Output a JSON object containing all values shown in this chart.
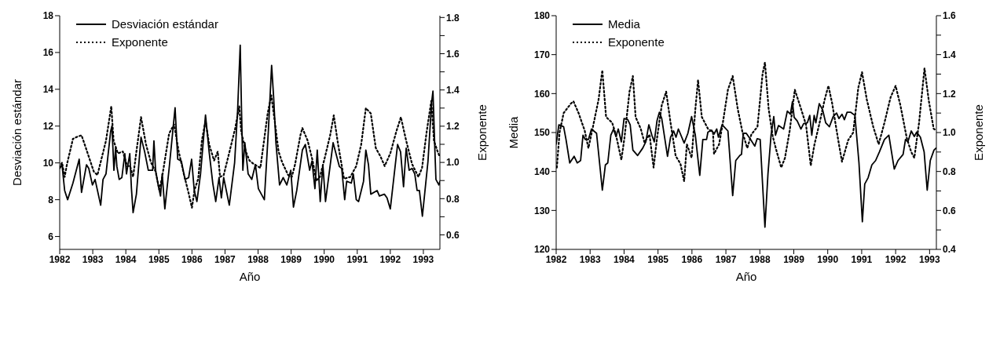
{
  "chart_data": [
    {
      "type": "line",
      "xlabel": "Año",
      "ylabel": "Desviación estándar",
      "y2label": "Exponente",
      "legend": "top left",
      "grid": false,
      "xlim": [
        1982,
        1993.5
      ],
      "xticks": [
        1982,
        1983,
        1984,
        1985,
        1986,
        1987,
        1988,
        1989,
        1990,
        1991,
        1992,
        1993
      ],
      "ylim": [
        5.3,
        18
      ],
      "yticks": [
        6,
        8,
        10,
        12,
        14,
        16,
        18
      ],
      "y2lim": [
        0.52,
        1.81
      ],
      "y2ticks": [
        0.6,
        {
          "value": 0.7,
          "label": null
        },
        0.8,
        {
          "value": 0.9,
          "label": null
        },
        {
          "value": 1.0,
          "label": "1.0"
        },
        {
          "value": 1.1,
          "label": null
        },
        1.2,
        {
          "value": 1.3,
          "label": null
        },
        1.4,
        {
          "value": 1.5,
          "label": null
        },
        1.6,
        {
          "value": 1.7,
          "label": null
        },
        1.8
      ],
      "series": [
        {
          "name": "Desviación estándar",
          "color": "#000000",
          "line_style": "solid",
          "x": [
            1982.0,
            1982.07,
            1982.15,
            1982.24,
            1982.4,
            1982.59,
            1982.66,
            1982.81,
            1982.88,
            1982.99,
            1983.07,
            1983.24,
            1983.31,
            1983.4,
            1983.54,
            1983.58,
            1983.64,
            1983.69,
            1983.73,
            1983.8,
            1983.88,
            1983.97,
            1984.02,
            1984.12,
            1984.17,
            1984.22,
            1984.32,
            1984.46,
            1984.57,
            1984.68,
            1984.81,
            1984.85,
            1984.9,
            1984.98,
            1985.05,
            1985.1,
            1985.18,
            1985.31,
            1985.49,
            1985.57,
            1985.68,
            1985.79,
            1985.9,
            1985.99,
            1986.07,
            1986.15,
            1986.26,
            1986.41,
            1986.52,
            1986.63,
            1986.72,
            1986.82,
            1986.89,
            1986.96,
            1987.13,
            1987.29,
            1987.38,
            1987.46,
            1987.5,
            1987.54,
            1987.6,
            1987.7,
            1987.81,
            1987.92,
            1988.01,
            1988.19,
            1988.31,
            1988.41,
            1988.47,
            1988.54,
            1988.65,
            1988.76,
            1988.87,
            1988.99,
            1989.07,
            1989.17,
            1989.34,
            1989.43,
            1989.56,
            1989.63,
            1989.72,
            1989.79,
            1989.88,
            1989.96,
            1990.04,
            1990.27,
            1990.46,
            1990.53,
            1990.62,
            1990.68,
            1990.82,
            1990.88,
            1990.97,
            1991.04,
            1991.19,
            1991.26,
            1991.34,
            1991.41,
            1991.6,
            1991.67,
            1991.82,
            1991.9,
            1992.0,
            1992.22,
            1992.31,
            1992.4,
            1992.48,
            1992.57,
            1992.66,
            1992.74,
            1992.81,
            1992.88,
            1992.97,
            1993.14,
            1993.25,
            1993.29,
            1993.35,
            1993.38,
            1993.47,
            1993.5
          ],
          "values": [
            9.7,
            9.9,
            8.5,
            8.0,
            8.9,
            10.2,
            8.4,
            9.9,
            9.7,
            8.8,
            9.1,
            7.7,
            9.1,
            9.4,
            11.7,
            12.0,
            9.6,
            10.8,
            9.8,
            9.1,
            9.2,
            10.5,
            9.4,
            10.5,
            8.6,
            7.3,
            8.3,
            11.4,
            10.6,
            9.6,
            9.6,
            11.2,
            9.6,
            8.8,
            8.2,
            9.4,
            7.5,
            9.7,
            13.0,
            10.2,
            10.1,
            9.1,
            9.2,
            10.2,
            8.5,
            7.9,
            9.4,
            12.6,
            10.6,
            8.9,
            7.9,
            9.2,
            8.1,
            9.2,
            7.7,
            10.0,
            12.8,
            16.4,
            12.8,
            9.6,
            11.1,
            9.4,
            9.1,
            9.9,
            8.6,
            8.0,
            11.7,
            15.3,
            13.6,
            11.1,
            8.8,
            9.2,
            8.8,
            9.6,
            7.6,
            8.5,
            10.7,
            11.0,
            9.6,
            10.1,
            8.6,
            10.7,
            7.9,
            9.9,
            7.9,
            11.1,
            9.8,
            9.7,
            8.0,
            9.0,
            8.9,
            9.4,
            8.0,
            7.9,
            9.0,
            10.7,
            9.9,
            8.3,
            8.5,
            8.2,
            8.3,
            8.1,
            7.5,
            11.0,
            10.6,
            8.7,
            10.8,
            9.6,
            9.7,
            9.4,
            8.5,
            8.5,
            7.1,
            10.1,
            13.3,
            13.9,
            10.6,
            9.1,
            8.8,
            9.0
          ]
        },
        {
          "name": "Exponente",
          "color": "#000000",
          "line_style": "dotted",
          "axis": "y2",
          "x": [
            1982.0,
            1982.07,
            1982.15,
            1982.22,
            1982.4,
            1982.51,
            1982.66,
            1982.81,
            1983.03,
            1983.14,
            1983.25,
            1983.4,
            1983.56,
            1983.63,
            1983.76,
            1983.91,
            1984.04,
            1984.13,
            1984.22,
            1984.32,
            1984.46,
            1984.61,
            1984.76,
            1984.9,
            1985.01,
            1985.09,
            1985.31,
            1985.46,
            1985.6,
            1985.75,
            1985.9,
            1986.0,
            1986.08,
            1986.19,
            1986.3,
            1986.41,
            1986.52,
            1986.67,
            1986.78,
            1986.85,
            1986.96,
            1987.15,
            1987.31,
            1987.43,
            1987.49,
            1987.63,
            1987.74,
            1987.88,
            1988.07,
            1988.18,
            1988.29,
            1988.4,
            1988.51,
            1988.62,
            1988.73,
            1988.91,
            1989.02,
            1989.12,
            1989.28,
            1989.34,
            1989.5,
            1989.65,
            1989.76,
            1989.87,
            1990.01,
            1990.18,
            1990.29,
            1990.42,
            1990.6,
            1990.79,
            1990.97,
            1991.12,
            1991.26,
            1991.41,
            1991.56,
            1991.71,
            1991.83,
            1992.0,
            1992.18,
            1992.32,
            1992.48,
            1992.66,
            1992.85,
            1992.96,
            1993.1,
            1993.24,
            1993.32,
            1993.43,
            1993.5
          ],
          "values": [
            0.97,
            1.0,
            0.92,
            0.99,
            1.13,
            1.14,
            1.15,
            1.07,
            0.95,
            0.93,
            1.01,
            1.12,
            1.31,
            1.12,
            1.05,
            1.06,
            0.98,
            0.98,
            0.92,
            1.06,
            1.25,
            1.1,
            1.0,
            0.95,
            0.85,
            0.91,
            1.16,
            1.21,
            1.06,
            0.94,
            0.83,
            0.75,
            0.85,
            0.91,
            1.12,
            1.23,
            1.1,
            1.01,
            1.06,
            0.92,
            0.93,
            1.07,
            1.19,
            1.31,
            1.17,
            1.06,
            1.01,
            0.99,
            0.97,
            1.12,
            1.27,
            1.37,
            1.22,
            1.06,
            1.0,
            0.93,
            0.92,
            0.99,
            1.15,
            1.19,
            1.12,
            1.01,
            0.9,
            0.92,
            1.02,
            1.15,
            1.26,
            1.1,
            0.91,
            0.92,
            0.98,
            1.1,
            1.3,
            1.27,
            1.08,
            1.03,
            0.98,
            1.05,
            1.17,
            1.25,
            1.12,
            0.99,
            0.92,
            0.97,
            1.17,
            1.34,
            1.12,
            1.06,
            1.03
          ]
        }
      ]
    },
    {
      "type": "line",
      "xlabel": "Año",
      "ylabel": "Media",
      "y2label": "Exponente",
      "legend": "top left",
      "grid": false,
      "xlim": [
        1982,
        1993.2
      ],
      "xticks": [
        1982,
        1983,
        1984,
        1985,
        1986,
        1987,
        1988,
        1989,
        1990,
        1991,
        1992,
        1993
      ],
      "ylim": [
        120,
        180
      ],
      "yticks": [
        120,
        130,
        140,
        150,
        160,
        170,
        180
      ],
      "y2lim": [
        0.4,
        1.6
      ],
      "y2ticks": [
        0.4,
        {
          "value": 0.5,
          "label": null
        },
        0.6,
        {
          "value": 0.7,
          "label": null
        },
        0.8,
        {
          "value": 0.9,
          "label": null
        },
        {
          "value": 1.0,
          "label": "1.0"
        },
        {
          "value": 1.1,
          "label": null
        },
        1.2,
        {
          "value": 1.3,
          "label": null
        },
        1.4,
        {
          "value": 1.5,
          "label": null
        },
        1.6
      ],
      "series": [
        {
          "name": "Media",
          "color": "#000000",
          "line_style": "solid",
          "x": [
            1982.0,
            1982.08,
            1982.22,
            1982.29,
            1982.4,
            1982.53,
            1982.62,
            1982.72,
            1982.79,
            1982.86,
            1982.95,
            1983.04,
            1983.19,
            1983.36,
            1983.45,
            1983.52,
            1983.61,
            1983.69,
            1983.76,
            1983.83,
            1983.92,
            1984.0,
            1984.11,
            1984.18,
            1984.26,
            1984.4,
            1984.55,
            1984.64,
            1984.73,
            1984.82,
            1984.89,
            1984.97,
            1985.04,
            1985.11,
            1985.28,
            1985.37,
            1985.46,
            1985.53,
            1985.6,
            1985.77,
            1985.88,
            1985.99,
            1986.1,
            1986.23,
            1986.32,
            1986.43,
            1986.47,
            1986.58,
            1986.65,
            1986.73,
            1986.78,
            1986.89,
            1987.06,
            1987.2,
            1987.29,
            1987.41,
            1987.46,
            1987.51,
            1987.6,
            1987.73,
            1987.85,
            1987.92,
            1988.01,
            1988.08,
            1988.15,
            1988.24,
            1988.33,
            1988.41,
            1988.46,
            1988.55,
            1988.7,
            1988.81,
            1988.9,
            1988.96,
            1989.01,
            1989.1,
            1989.21,
            1989.29,
            1989.4,
            1989.47,
            1989.53,
            1989.6,
            1989.65,
            1989.75,
            1989.85,
            1989.94,
            1990.05,
            1990.16,
            1990.26,
            1990.33,
            1990.42,
            1990.49,
            1990.57,
            1990.68,
            1990.8,
            1990.92,
            1991.02,
            1991.09,
            1991.19,
            1991.3,
            1991.41,
            1991.52,
            1991.67,
            1991.8,
            1991.96,
            1992.07,
            1992.22,
            1992.29,
            1992.36,
            1992.46,
            1992.55,
            1992.62,
            1992.73,
            1992.84,
            1992.93,
            1993.02,
            1993.13,
            1993.19
          ],
          "values": [
            147,
            152,
            151.5,
            148.2,
            142.2,
            143.9,
            142.2,
            142.8,
            149.3,
            148.2,
            148.2,
            150.9,
            149.8,
            135.2,
            141.7,
            142.2,
            149.3,
            150.9,
            149.0,
            150.9,
            147.6,
            153.6,
            153.3,
            152.0,
            145.5,
            144.1,
            146.0,
            147.6,
            152.0,
            149.3,
            147.6,
            153.0,
            155.2,
            153.6,
            143.9,
            148.8,
            150.4,
            148.8,
            150.9,
            147.3,
            149.8,
            154.1,
            149.3,
            139.0,
            148.2,
            148.2,
            150.1,
            150.6,
            149.6,
            150.9,
            148.8,
            152.0,
            150.4,
            133.8,
            142.8,
            144.1,
            144.4,
            149.8,
            149.8,
            148.2,
            146.5,
            148.4,
            148.2,
            136.8,
            125.7,
            139.5,
            149.3,
            154.1,
            149.3,
            151.8,
            150.9,
            155.5,
            154.7,
            157.9,
            153.9,
            153.0,
            150.9,
            152.3,
            152.5,
            154.4,
            149.3,
            154.4,
            152.5,
            157.4,
            155.8,
            152.5,
            151.5,
            154.1,
            155.0,
            153.6,
            154.7,
            153.3,
            155.2,
            155.2,
            154.4,
            142.2,
            127.1,
            136.8,
            138.4,
            141.7,
            142.8,
            145.0,
            148.2,
            149.3,
            140.6,
            142.8,
            144.4,
            148.2,
            147.6,
            150.4,
            149.0,
            150.1,
            148.8,
            145.0,
            135.2,
            142.8,
            145.5,
            146.0
          ]
        },
        {
          "name": "Exponente",
          "color": "#000000",
          "line_style": "dotted",
          "axis": "y2",
          "x": [
            1982.02,
            1982.1,
            1982.22,
            1982.44,
            1982.51,
            1982.66,
            1982.84,
            1982.95,
            1983.06,
            1983.25,
            1983.36,
            1983.47,
            1983.65,
            1983.76,
            1983.92,
            1984.01,
            1984.16,
            1984.26,
            1984.34,
            1984.49,
            1984.6,
            1984.75,
            1984.87,
            1984.97,
            1985.11,
            1985.24,
            1985.37,
            1985.52,
            1985.66,
            1985.77,
            1985.85,
            1985.99,
            1986.1,
            1986.18,
            1986.29,
            1986.47,
            1986.62,
            1986.65,
            1986.8,
            1986.91,
            1987.06,
            1987.2,
            1987.35,
            1987.49,
            1987.63,
            1987.75,
            1987.93,
            1988.08,
            1988.15,
            1988.26,
            1988.38,
            1988.5,
            1988.63,
            1988.74,
            1988.88,
            1989.03,
            1989.18,
            1989.36,
            1989.5,
            1989.61,
            1989.76,
            1989.91,
            1990.02,
            1990.13,
            1990.31,
            1990.42,
            1990.6,
            1990.75,
            1990.9,
            1991.01,
            1991.15,
            1991.34,
            1991.5,
            1991.67,
            1991.85,
            1992.0,
            1992.14,
            1992.33,
            1992.46,
            1992.55,
            1992.69,
            1992.85,
            1992.98,
            1993.12,
            1993.19
          ],
          "values": [
            0.82,
            1.0,
            1.1,
            1.15,
            1.16,
            1.1,
            1.01,
            0.92,
            1.01,
            1.17,
            1.32,
            1.08,
            1.05,
            0.99,
            0.86,
            0.97,
            1.21,
            1.29,
            1.08,
            1.02,
            0.95,
            0.99,
            0.82,
            0.97,
            1.14,
            1.21,
            1.05,
            0.88,
            0.84,
            0.75,
            0.94,
            0.87,
            1.12,
            1.27,
            1.08,
            1.02,
            1.0,
            0.89,
            0.94,
            1.05,
            1.22,
            1.29,
            1.12,
            1.0,
            0.92,
            0.99,
            1.03,
            1.3,
            1.36,
            1.12,
            0.98,
            0.9,
            0.82,
            0.87,
            1.01,
            1.22,
            1.14,
            1.04,
            0.83,
            0.94,
            1.05,
            1.17,
            1.24,
            1.15,
            0.96,
            0.85,
            0.96,
            1.0,
            1.23,
            1.31,
            1.17,
            1.03,
            0.94,
            1.05,
            1.18,
            1.24,
            1.14,
            0.97,
            0.9,
            0.87,
            1.05,
            1.33,
            1.16,
            1.02,
            1.01
          ]
        }
      ]
    }
  ]
}
